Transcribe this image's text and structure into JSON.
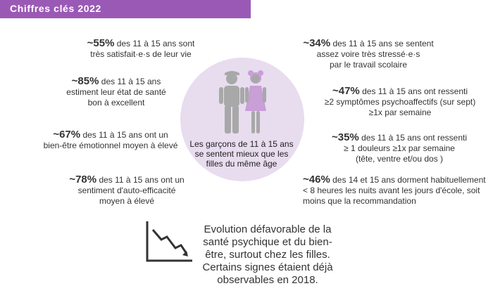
{
  "header": {
    "title": "Chiffres clés 2022"
  },
  "stats_left": [
    {
      "pct": "~55%",
      "line1": " des 11 à 15 ans sont",
      "line2": "très satisfait·e·s de leur vie",
      "line3": ""
    },
    {
      "pct": "~85%",
      "line1": " des 11 à 15 ans",
      "line2": "estiment leur état de santé",
      "line3": "bon à excellent"
    },
    {
      "pct": "~67%",
      "line1": " des 11 à 15 ans ont un",
      "line2": "bien-être émotionnel moyen à élevé",
      "line3": ""
    },
    {
      "pct": "~78%",
      "line1": " des 11 à 15 ans ont un",
      "line2": "sentiment d'auto-efficacité",
      "line3": "moyen à élevé"
    }
  ],
  "stats_right": [
    {
      "pct": "~34%",
      "line1": " des 11 à 15 ans se sentent",
      "line2": "assez voire très stressé·e·s",
      "line3": "par le travail scolaire"
    },
    {
      "pct": "~47%",
      "line1": " des 11 à 15 ans ont ressenti",
      "line2": "≥2 symptômes psychoaffectifs (sur sept)",
      "line3": "≥1x par semaine"
    },
    {
      "pct": "~35%",
      "line1": " des 11 à 15 ans ont ressenti",
      "line2": "≥ 1 douleurs ≥1x par semaine",
      "line3": "(tête, ventre et/ou dos )"
    },
    {
      "pct": "~46%",
      "line1": " des 14 et 15 ans dorment habituellement",
      "line2": "< 8 heures les nuits avant les jours d'école, soit",
      "line3": "moins que la recommandation"
    }
  ],
  "center": {
    "line1": "Les garçons de 11 à 15 ans",
    "line2": "se sentent mieux que les",
    "line3": "filles du même âge"
  },
  "bottom": {
    "line1": "Evolution défavorable de la",
    "line2": "santé psychique et du bien-",
    "line3": "être, surtout chez les filles.",
    "line4": "Certains signes étaient déjà",
    "line5": "observables en 2018."
  },
  "colors": {
    "accent": "#9b59b6",
    "circle": "#e8dcef",
    "figure": "#a8a8a8"
  },
  "icons": {
    "people": "boy-girl-icon",
    "trend": "declining-chart-icon"
  }
}
